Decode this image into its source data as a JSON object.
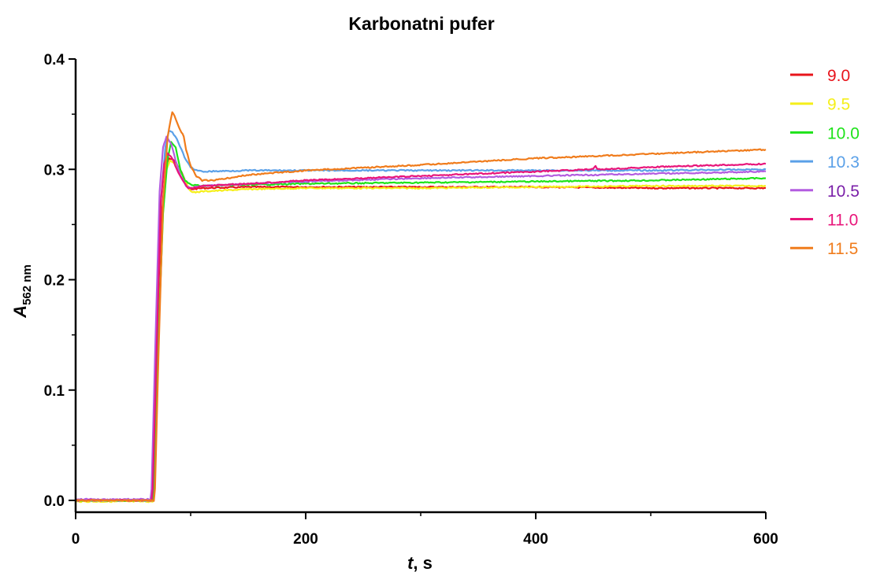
{
  "chart_data": {
    "type": "line",
    "title": "Karbonatni pufer",
    "xlabel": {
      "main": "t",
      "suffix": ", s"
    },
    "ylabel": {
      "main": "A",
      "sub": "562 nm"
    },
    "xlim": [
      0,
      600
    ],
    "ylim": [
      -0.01,
      0.4
    ],
    "xticks": [
      0,
      200,
      400,
      600
    ],
    "yticks": [
      0.0,
      0.1,
      0.2,
      0.3,
      0.4
    ],
    "xtick_labels": [
      "0",
      "200",
      "400",
      "600"
    ],
    "ytick_labels": [
      "0.0",
      "0.1",
      "0.2",
      "0.3",
      "0.4"
    ],
    "grid": false,
    "legend_position": "right",
    "series": [
      {
        "name": "9.0",
        "color": "#e8141b",
        "x": [
          0,
          66,
          67,
          70,
          75,
          78,
          81,
          86,
          92,
          97,
          100,
          110,
          150,
          200,
          300,
          400,
          500,
          600
        ],
        "y": [
          0.0,
          0.0,
          0.01,
          0.12,
          0.26,
          0.3,
          0.31,
          0.308,
          0.298,
          0.285,
          0.282,
          0.283,
          0.284,
          0.284,
          0.284,
          0.284,
          0.283,
          0.283
        ]
      },
      {
        "name": "9.5",
        "color": "#f5ef1b",
        "x": [
          0,
          67,
          68,
          71,
          76,
          79,
          82,
          87,
          93,
          98,
          102,
          110,
          150,
          200,
          300,
          400,
          500,
          600
        ],
        "y": [
          -0.001,
          -0.001,
          0.01,
          0.12,
          0.26,
          0.3,
          0.308,
          0.305,
          0.295,
          0.283,
          0.279,
          0.28,
          0.282,
          0.283,
          0.283,
          0.284,
          0.285,
          0.285
        ]
      },
      {
        "name": "10.0",
        "color": "#1ee31a",
        "x": [
          0,
          67,
          68,
          71,
          76,
          80,
          83,
          87,
          91,
          95,
          100,
          110,
          150,
          200,
          300,
          400,
          500,
          600
        ],
        "y": [
          0.0,
          0.0,
          0.01,
          0.12,
          0.26,
          0.31,
          0.325,
          0.32,
          0.3,
          0.29,
          0.286,
          0.285,
          0.286,
          0.287,
          0.288,
          0.289,
          0.29,
          0.292
        ]
      },
      {
        "name": "10.3",
        "color": "#5aa0e8",
        "x": [
          0,
          66,
          67,
          70,
          74,
          78,
          81,
          84,
          88,
          92,
          96,
          100,
          105,
          110,
          150,
          200,
          300,
          400,
          500,
          600
        ],
        "y": [
          0.0,
          0.0,
          0.01,
          0.13,
          0.27,
          0.32,
          0.335,
          0.334,
          0.327,
          0.318,
          0.308,
          0.302,
          0.299,
          0.298,
          0.299,
          0.299,
          0.299,
          0.299,
          0.299,
          0.3
        ]
      },
      {
        "name": "10.5",
        "color": "#b35ce0",
        "x": [
          0,
          65,
          66,
          69,
          73,
          76,
          79,
          83,
          87,
          91,
          96,
          100,
          110,
          150,
          200,
          300,
          400,
          500,
          600
        ],
        "y": [
          0.001,
          0.001,
          0.01,
          0.13,
          0.28,
          0.32,
          0.33,
          0.323,
          0.308,
          0.295,
          0.285,
          0.283,
          0.285,
          0.287,
          0.289,
          0.292,
          0.294,
          0.296,
          0.298
        ]
      },
      {
        "name": "11.0",
        "color": "#e8157a",
        "x": [
          0,
          66,
          67,
          70,
          74,
          77,
          80,
          84,
          88,
          93,
          98,
          102,
          110,
          150,
          200,
          300,
          400,
          450,
          452,
          454,
          500,
          600
        ],
        "y": [
          0.0,
          0.0,
          0.01,
          0.12,
          0.27,
          0.305,
          0.315,
          0.31,
          0.3,
          0.29,
          0.283,
          0.283,
          0.285,
          0.287,
          0.29,
          0.294,
          0.298,
          0.3,
          0.303,
          0.3,
          0.302,
          0.305
        ]
      },
      {
        "name": "11.5",
        "color": "#f07c1c",
        "x": [
          0,
          68,
          69,
          72,
          76,
          80,
          84,
          87,
          91,
          94,
          96,
          100,
          105,
          110,
          120,
          150,
          200,
          300,
          400,
          500,
          600
        ],
        "y": [
          0.0,
          0.0,
          0.01,
          0.13,
          0.27,
          0.33,
          0.352,
          0.346,
          0.335,
          0.33,
          0.318,
          0.303,
          0.294,
          0.29,
          0.29,
          0.295,
          0.299,
          0.304,
          0.31,
          0.314,
          0.318
        ]
      }
    ]
  }
}
